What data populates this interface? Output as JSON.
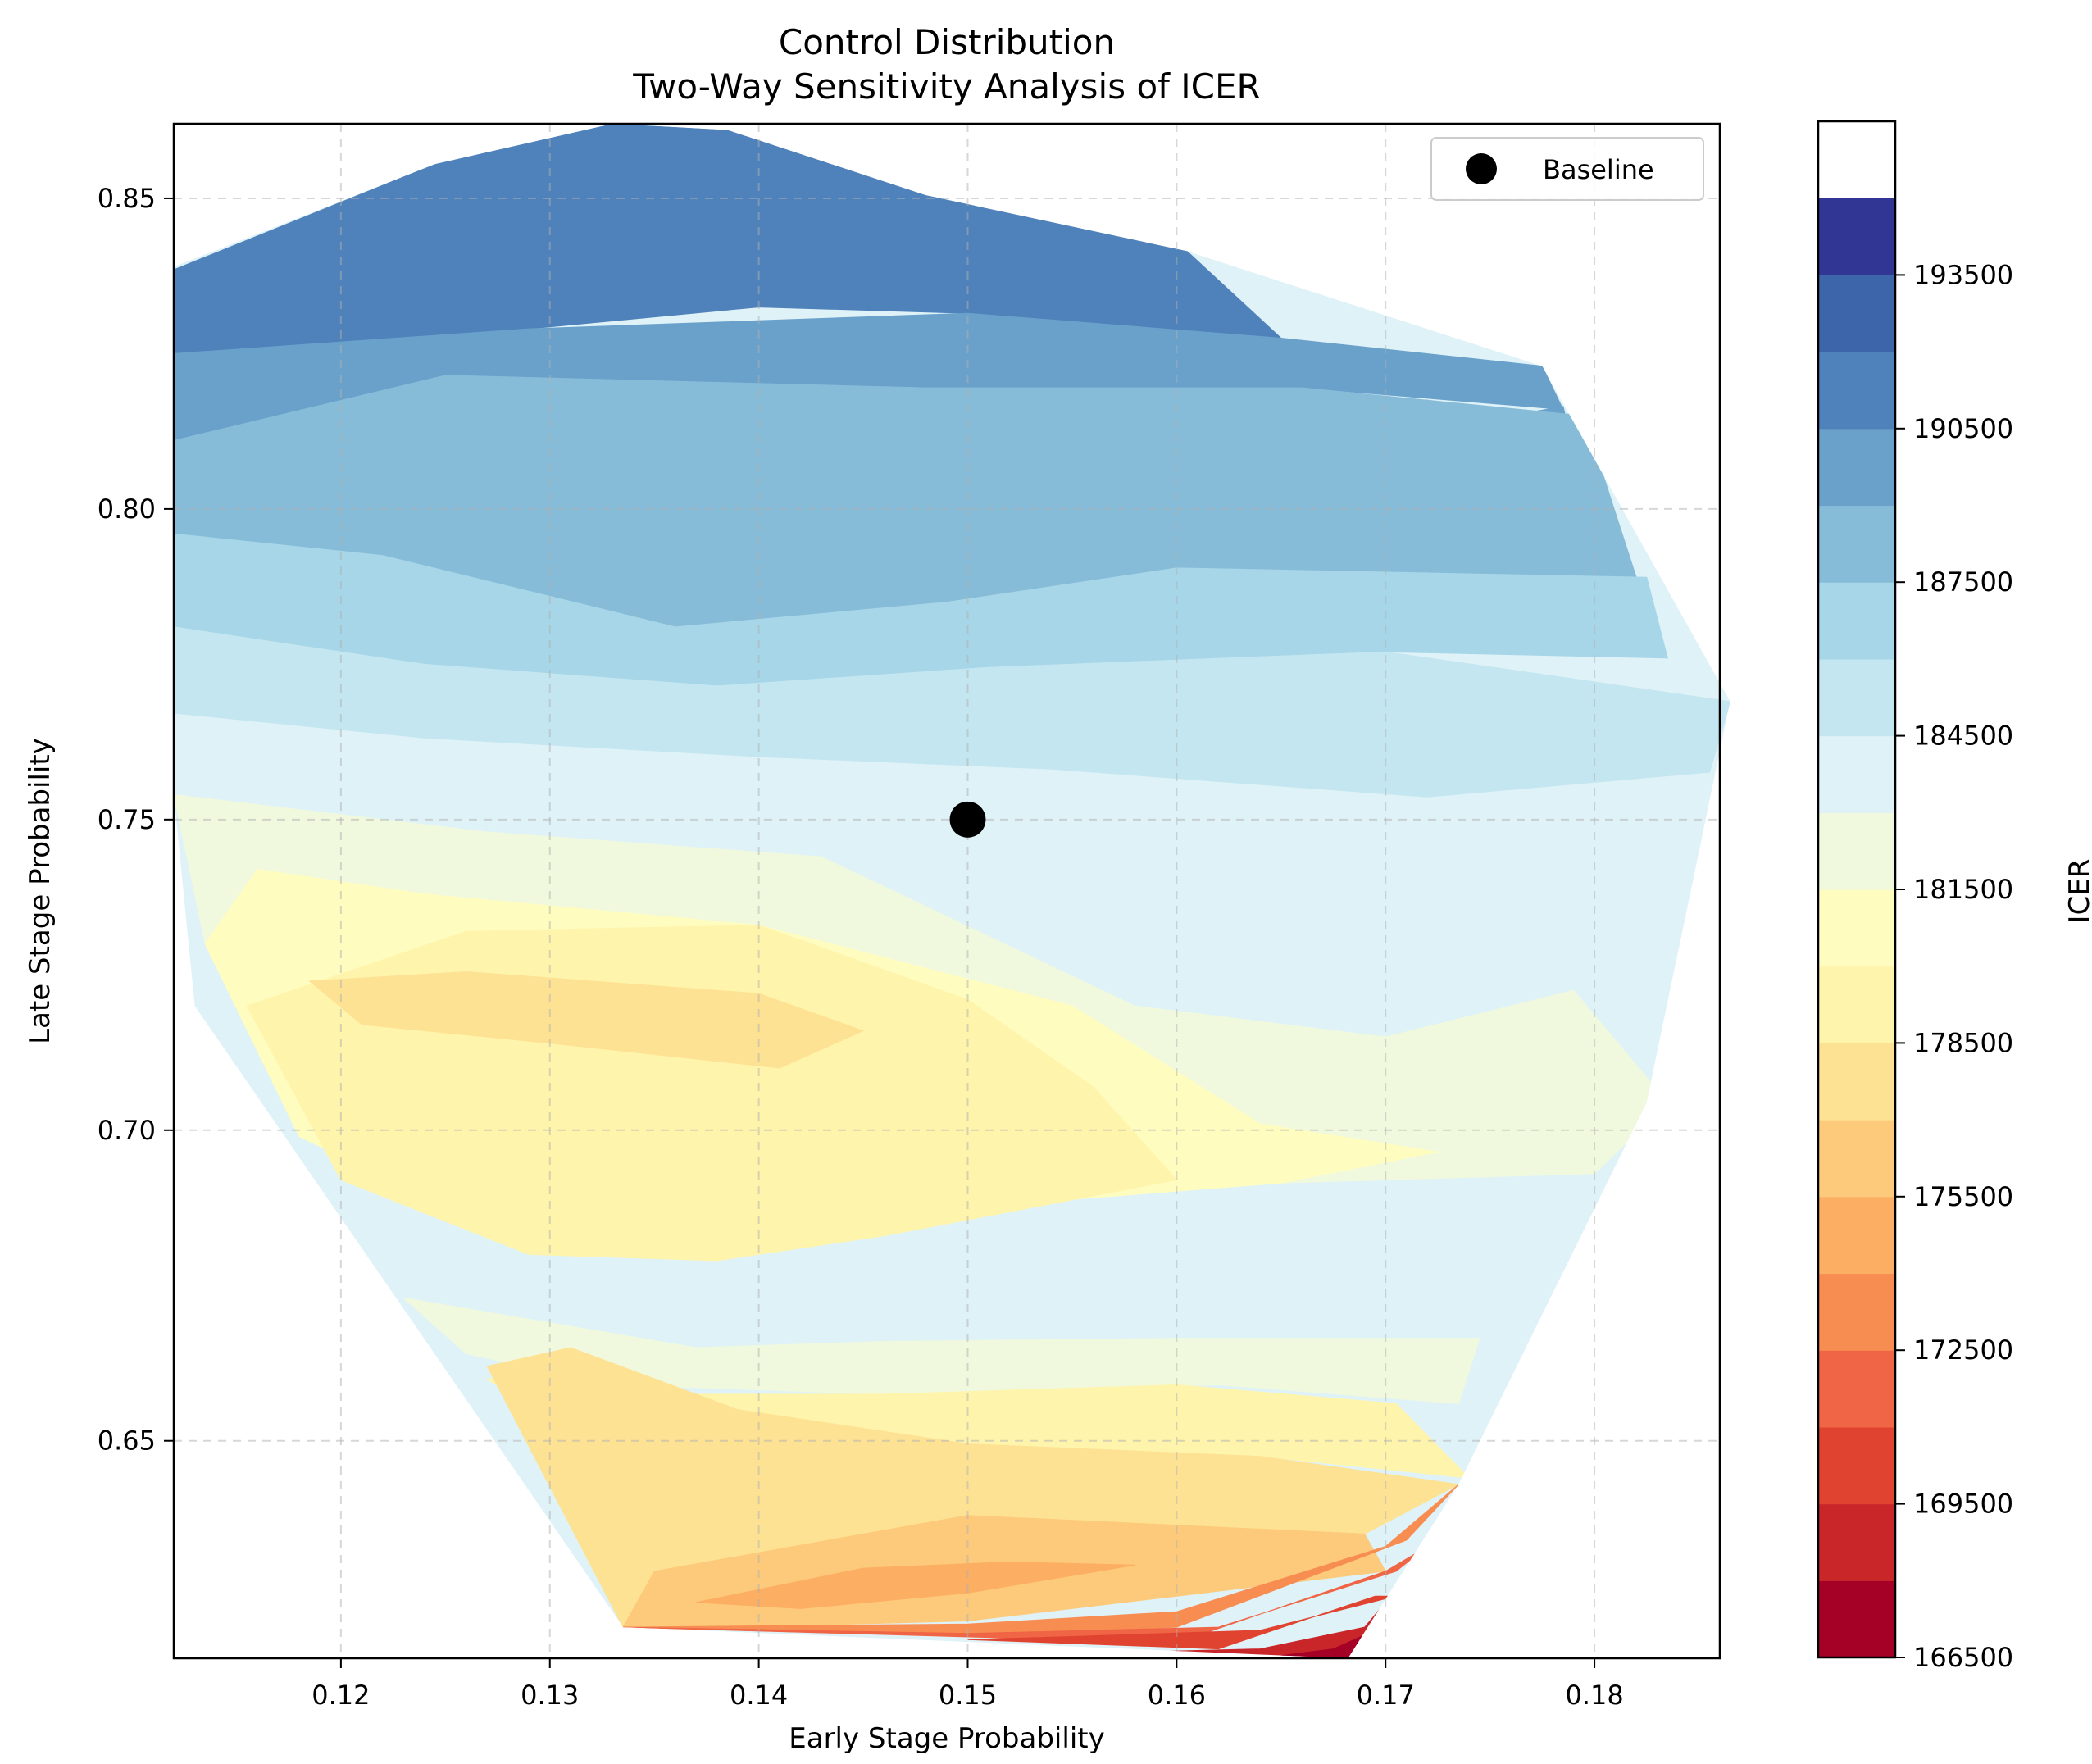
{
  "chart_data": {
    "type": "contour",
    "title": "Control Distribution",
    "subtitle": "Two-Way Sensitivity Analysis of ICER",
    "xlabel": "Early Stage Probability",
    "ylabel": "Late Stage Probability",
    "xlim": [
      0.112,
      0.186
    ],
    "ylim": [
      0.615,
      0.862
    ],
    "xticks": [
      0.12,
      0.13,
      0.14,
      0.15,
      0.16,
      0.17,
      0.18
    ],
    "xtick_labels": [
      "0.12",
      "0.13",
      "0.14",
      "0.15",
      "0.16",
      "0.17",
      "0.18"
    ],
    "yticks": [
      0.65,
      0.7,
      0.75,
      0.8,
      0.85
    ],
    "ytick_labels": [
      "0.65",
      "0.70",
      "0.75",
      "0.80",
      "0.85"
    ],
    "grid": true,
    "colorbar": {
      "label": "ICER",
      "colormap": "RdYlBu",
      "min": 166500,
      "max": 196500,
      "step": 1500,
      "ticks": [
        166500,
        169500,
        172500,
        175500,
        178500,
        181500,
        184500,
        187500,
        190500,
        193500
      ],
      "tick_labels": [
        "166500",
        "169500",
        "172500",
        "175500",
        "178500",
        "181500",
        "184500",
        "187500",
        "190500",
        "193500"
      ],
      "colors": [
        "#a50026",
        "#c9262a",
        "#e04430",
        "#ef6545",
        "#f88d52",
        "#fcae63",
        "#fdca7b",
        "#fee293",
        "#fff4ac",
        "#fffcbf",
        "#f0f9de",
        "#dff2f7",
        "#c4e6f0",
        "#a6d6e7",
        "#87bcd9",
        "#6aa1cb",
        "#4f82bb",
        "#3d65a9",
        "#313695"
      ]
    },
    "hull": [
      [
        0.112,
        0.839
      ],
      [
        0.1245,
        0.8555
      ],
      [
        0.133,
        0.862
      ],
      [
        0.1385,
        0.861
      ],
      [
        0.148,
        0.8505
      ],
      [
        0.1605,
        0.8415
      ],
      [
        0.1775,
        0.823
      ],
      [
        0.1865,
        0.769
      ],
      [
        0.1825,
        0.7045
      ],
      [
        0.1735,
        0.643
      ],
      [
        0.1682,
        0.615
      ],
      [
        0.1335,
        0.62
      ],
      [
        0.113,
        0.72
      ],
      [
        0.112,
        0.754
      ]
    ],
    "levels": [
      {
        "icer": 192750,
        "points": [
          [
            0.134,
            0.858
          ],
          [
            0.141,
            0.8605
          ],
          [
            0.151,
            0.848
          ],
          [
            0.156,
            0.8425
          ],
          [
            0.15,
            0.8405
          ],
          [
            0.141,
            0.844
          ],
          [
            0.138,
            0.846
          ],
          [
            0.134,
            0.852
          ]
        ]
      },
      {
        "icer": 192750,
        "points": [
          [
            0.153,
            0.8095
          ],
          [
            0.163,
            0.812
          ],
          [
            0.172,
            0.8175
          ],
          [
            0.1765,
            0.8155
          ],
          [
            0.176,
            0.804
          ],
          [
            0.1725,
            0.801
          ],
          [
            0.164,
            0.804
          ],
          [
            0.159,
            0.8055
          ]
        ]
      },
      {
        "icer": 191250,
        "points": [
          [
            0.112,
            0.8385
          ],
          [
            0.1245,
            0.8555
          ],
          [
            0.133,
            0.862
          ],
          [
            0.1385,
            0.861
          ],
          [
            0.1605,
            0.8415
          ],
          [
            0.165,
            0.8275
          ],
          [
            0.15,
            0.8315
          ],
          [
            0.14,
            0.8325
          ],
          [
            0.129,
            0.829
          ],
          [
            0.112,
            0.825
          ]
        ]
      },
      {
        "icer": 189750,
        "points": [
          [
            0.112,
            0.825
          ],
          [
            0.129,
            0.829
          ],
          [
            0.15,
            0.8315
          ],
          [
            0.165,
            0.8275
          ],
          [
            0.1775,
            0.823
          ],
          [
            0.1785,
            0.816
          ],
          [
            0.166,
            0.8195
          ],
          [
            0.148,
            0.8195
          ],
          [
            0.125,
            0.8215
          ],
          [
            0.112,
            0.811
          ]
        ]
      },
      {
        "icer": 189750,
        "points": [
          [
            0.145,
            0.7985
          ],
          [
            0.158,
            0.802
          ],
          [
            0.17,
            0.8115
          ],
          [
            0.1785,
            0.8165
          ],
          [
            0.18,
            0.795
          ],
          [
            0.171,
            0.793
          ],
          [
            0.161,
            0.7955
          ],
          [
            0.152,
            0.7925
          ]
        ]
      },
      {
        "icer": 188250,
        "points": [
          [
            0.112,
            0.811
          ],
          [
            0.125,
            0.8215
          ],
          [
            0.148,
            0.8195
          ],
          [
            0.166,
            0.8195
          ],
          [
            0.1795,
            0.815
          ],
          [
            0.182,
            0.789
          ],
          [
            0.173,
            0.7895
          ],
          [
            0.16,
            0.7905
          ],
          [
            0.149,
            0.785
          ],
          [
            0.136,
            0.781
          ],
          [
            0.122,
            0.7925
          ],
          [
            0.112,
            0.796
          ]
        ]
      },
      {
        "icer": 186750,
        "points": [
          [
            0.112,
            0.796
          ],
          [
            0.122,
            0.7925
          ],
          [
            0.136,
            0.781
          ],
          [
            0.149,
            0.785
          ],
          [
            0.16,
            0.7905
          ],
          [
            0.1825,
            0.789
          ],
          [
            0.1835,
            0.776
          ],
          [
            0.17,
            0.777
          ],
          [
            0.151,
            0.7745
          ],
          [
            0.138,
            0.7715
          ],
          [
            0.124,
            0.775
          ],
          [
            0.112,
            0.781
          ]
        ]
      },
      {
        "icer": 185250,
        "points": [
          [
            0.112,
            0.781
          ],
          [
            0.124,
            0.775
          ],
          [
            0.138,
            0.7715
          ],
          [
            0.151,
            0.7745
          ],
          [
            0.17,
            0.777
          ],
          [
            0.1865,
            0.769
          ],
          [
            0.1855,
            0.7575
          ],
          [
            0.172,
            0.7535
          ],
          [
            0.154,
            0.758
          ],
          [
            0.14,
            0.76
          ],
          [
            0.124,
            0.763
          ],
          [
            0.112,
            0.767
          ]
        ]
      },
      {
        "icer": 183750,
        "points": [
          [
            0.112,
            0.767
          ],
          [
            0.124,
            0.763
          ],
          [
            0.14,
            0.76
          ],
          [
            0.154,
            0.758
          ],
          [
            0.172,
            0.7535
          ],
          [
            0.1855,
            0.7575
          ],
          [
            0.1845,
            0.73
          ],
          [
            0.179,
            0.7225
          ],
          [
            0.17,
            0.715
          ],
          [
            0.158,
            0.72
          ],
          [
            0.143,
            0.744
          ],
          [
            0.127,
            0.748
          ],
          [
            0.112,
            0.754
          ]
        ]
      },
      {
        "icer": 183750,
        "points": [
          [
            0.134,
            0.672
          ],
          [
            0.145,
            0.6745
          ],
          [
            0.16,
            0.6755
          ],
          [
            0.171,
            0.675
          ],
          [
            0.1825,
            0.7045
          ],
          [
            0.1795,
            0.679
          ],
          [
            0.1745,
            0.6665
          ],
          [
            0.16,
            0.6665
          ],
          [
            0.146,
            0.666
          ],
          [
            0.137,
            0.665
          ]
        ]
      },
      {
        "icer": 182250,
        "points": [
          [
            0.112,
            0.754
          ],
          [
            0.127,
            0.748
          ],
          [
            0.143,
            0.744
          ],
          [
            0.158,
            0.72
          ],
          [
            0.17,
            0.715
          ],
          [
            0.179,
            0.7225
          ],
          [
            0.1835,
            0.7045
          ],
          [
            0.18,
            0.693
          ],
          [
            0.165,
            0.6915
          ],
          [
            0.146,
            0.6865
          ],
          [
            0.128,
            0.683
          ],
          [
            0.118,
            0.699
          ],
          [
            0.1135,
            0.73
          ]
        ]
      },
      {
        "icer": 182250,
        "points": [
          [
            0.123,
            0.673
          ],
          [
            0.137,
            0.665
          ],
          [
            0.146,
            0.666
          ],
          [
            0.16,
            0.6665
          ],
          [
            0.1745,
            0.6665
          ],
          [
            0.1735,
            0.656
          ],
          [
            0.162,
            0.659
          ],
          [
            0.146,
            0.6575
          ],
          [
            0.133,
            0.659
          ],
          [
            0.126,
            0.664
          ]
        ]
      },
      {
        "icer": 180750,
        "points": [
          [
            0.1135,
            0.73
          ],
          [
            0.118,
            0.699
          ],
          [
            0.128,
            0.683
          ],
          [
            0.146,
            0.6865
          ],
          [
            0.165,
            0.6915
          ],
          [
            0.1725,
            0.6965
          ],
          [
            0.164,
            0.701
          ],
          [
            0.155,
            0.72
          ],
          [
            0.14,
            0.733
          ],
          [
            0.124,
            0.738
          ],
          [
            0.116,
            0.742
          ]
        ]
      },
      {
        "icer": 179250,
        "points": [
          [
            0.1155,
            0.72
          ],
          [
            0.126,
            0.732
          ],
          [
            0.14,
            0.733
          ],
          [
            0.15,
            0.721
          ],
          [
            0.156,
            0.707
          ],
          [
            0.16,
            0.692
          ],
          [
            0.146,
            0.683
          ],
          [
            0.138,
            0.679
          ],
          [
            0.129,
            0.68
          ],
          [
            0.12,
            0.692
          ]
        ]
      },
      {
        "icer": 179250,
        "points": [
          [
            0.127,
            0.66
          ],
          [
            0.135,
            0.6575
          ],
          [
            0.146,
            0.6575
          ],
          [
            0.16,
            0.659
          ],
          [
            0.1705,
            0.656
          ],
          [
            0.174,
            0.644
          ],
          [
            0.164,
            0.6475
          ],
          [
            0.15,
            0.649
          ],
          [
            0.139,
            0.65
          ],
          [
            0.13,
            0.653
          ]
        ]
      },
      {
        "icer": 177750,
        "points": [
          [
            0.1185,
            0.724
          ],
          [
            0.126,
            0.7255
          ],
          [
            0.14,
            0.722
          ],
          [
            0.145,
            0.716
          ],
          [
            0.141,
            0.71
          ],
          [
            0.13,
            0.714
          ],
          [
            0.121,
            0.717
          ]
        ]
      },
      {
        "icer": 177750,
        "points": [
          [
            0.127,
            0.662
          ],
          [
            0.131,
            0.665
          ],
          [
            0.139,
            0.655
          ],
          [
            0.15,
            0.6495
          ],
          [
            0.164,
            0.6475
          ],
          [
            0.1735,
            0.643
          ],
          [
            0.169,
            0.635
          ],
          [
            0.15,
            0.638
          ],
          [
            0.135,
            0.629
          ],
          [
            0.1335,
            0.62
          ]
        ]
      },
      {
        "icer": 176250,
        "points": [
          [
            0.1335,
            0.62
          ],
          [
            0.135,
            0.629
          ],
          [
            0.15,
            0.638
          ],
          [
            0.169,
            0.635
          ],
          [
            0.17,
            0.629
          ],
          [
            0.16,
            0.625
          ],
          [
            0.15,
            0.621
          ],
          [
            0.139,
            0.62
          ]
        ]
      },
      {
        "icer": 174750,
        "points": [
          [
            0.137,
            0.624
          ],
          [
            0.145,
            0.6295
          ],
          [
            0.152,
            0.6305
          ],
          [
            0.158,
            0.63
          ],
          [
            0.15,
            0.6255
          ],
          [
            0.142,
            0.623
          ]
        ]
      },
      {
        "icer": 173250,
        "points": [
          [
            0.1335,
            0.62
          ],
          [
            0.15,
            0.6185
          ],
          [
            0.16,
            0.62
          ],
          [
            0.171,
            0.634
          ],
          [
            0.1735,
            0.643
          ],
          [
            0.17,
            0.633
          ],
          [
            0.16,
            0.6225
          ],
          [
            0.15,
            0.6205
          ]
        ]
      },
      {
        "icer": 171750,
        "points": [
          [
            0.1335,
            0.62
          ],
          [
            0.16,
            0.6175
          ],
          [
            0.17,
            0.629
          ],
          [
            0.172,
            0.633
          ],
          [
            0.1705,
            0.629
          ],
          [
            0.162,
            0.62
          ],
          [
            0.15,
            0.619
          ]
        ]
      },
      {
        "icer": 170250,
        "points": [
          [
            0.15,
            0.618
          ],
          [
            0.162,
            0.6165
          ],
          [
            0.1695,
            0.625
          ],
          [
            0.1705,
            0.625
          ],
          [
            0.164,
            0.6195
          ],
          [
            0.155,
            0.6185
          ]
        ]
      },
      {
        "icer": 168750,
        "points": [
          [
            0.158,
            0.616
          ],
          [
            0.1682,
            0.615
          ],
          [
            0.17,
            0.624
          ],
          [
            0.169,
            0.62
          ],
          [
            0.164,
            0.6165
          ]
        ]
      },
      {
        "icer": 167250,
        "points": [
          [
            0.164,
            0.615
          ],
          [
            0.1682,
            0.615
          ],
          [
            0.1695,
            0.6195
          ],
          [
            0.1675,
            0.6165
          ]
        ]
      }
    ],
    "baseline": {
      "label": "Baseline",
      "x": 0.15,
      "y": 0.75
    },
    "legend_position": "top-right"
  }
}
